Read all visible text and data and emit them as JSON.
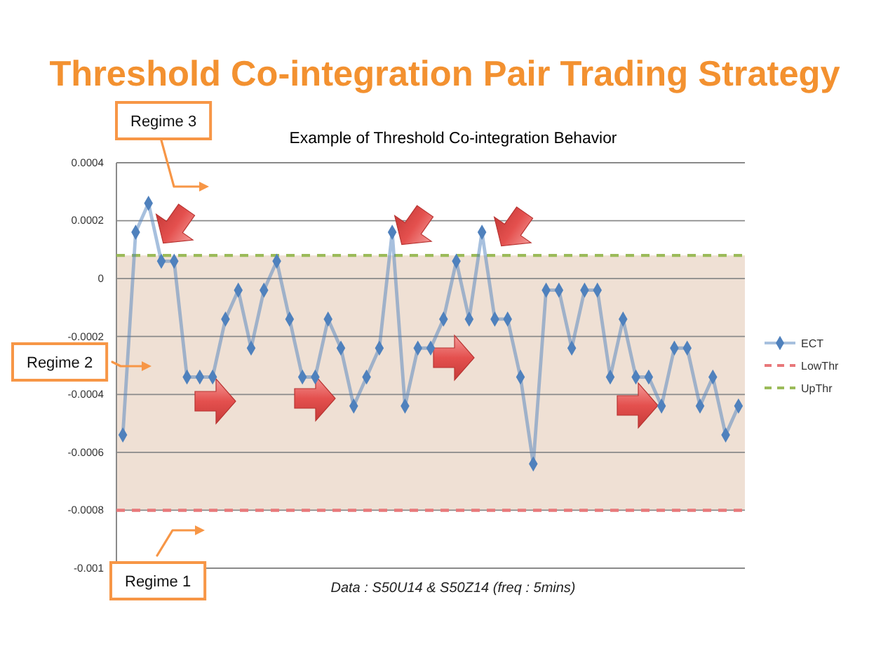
{
  "chart_data": {
    "type": "line",
    "title": "Threshold Co-integration Pair Trading Strategy",
    "subtitle": "Example of Threshold Co-integration Behavior",
    "xlabel": "Data : S50U14 & S50Z14 (freq : 5mins)",
    "categories": [
      null,
      null,
      null,
      null,
      null,
      null,
      null,
      null,
      null,
      null,
      null,
      null,
      null,
      null,
      null,
      null,
      null,
      null,
      null,
      null,
      null,
      null,
      null,
      null,
      null,
      null,
      null,
      null,
      null,
      null,
      null,
      null,
      null,
      null,
      null,
      null,
      null,
      null,
      null,
      null,
      null,
      null,
      null,
      null,
      null,
      null,
      null,
      null,
      null
    ],
    "series": [
      {
        "name": "ECT",
        "color": "#4f81bd",
        "values": [
          -0.00054,
          0.00016,
          0.00026,
          6e-05,
          6e-05,
          -0.00034,
          -0.00034,
          -0.00034,
          -0.00014,
          -4e-05,
          -0.00024,
          -4e-05,
          6e-05,
          -0.00014,
          -0.00034,
          -0.00034,
          -0.00014,
          -0.00024,
          -0.00044,
          -0.00034,
          -0.00024,
          0.00016,
          -0.00044,
          -0.00024,
          -0.00024,
          -0.00014,
          6e-05,
          -0.00014,
          0.00016,
          -0.00014,
          -0.00014,
          -0.00034,
          -0.00064,
          -4e-05,
          -4e-05,
          -0.00024,
          -4e-05,
          -4e-05,
          -0.00034,
          -0.00014,
          -0.00034,
          -0.00034,
          -0.00044,
          -0.00024,
          -0.00024,
          -0.00044,
          -0.00034,
          -0.00054,
          -0.00044
        ]
      }
    ],
    "ylim": [
      -0.001,
      0.0004
    ],
    "yticks": [
      -0.001,
      -0.0008,
      -0.0006,
      -0.0004,
      -0.0002,
      0,
      0.0002,
      0.0004
    ],
    "ref_lines": [
      {
        "axis": "y",
        "value": -0.0008,
        "label": "LowThr",
        "color": "#e8787a",
        "line_style": "dashed"
      },
      {
        "axis": "y",
        "value": 8e-05,
        "label": "UpThr",
        "color": "#9bbb59",
        "line_style": "dashed"
      }
    ],
    "bands": [
      {
        "axis": "y",
        "from": -0.0008,
        "to": 8e-05,
        "color": "#efe0d4"
      }
    ],
    "annotations": [
      "Regime 3",
      "Regime 2",
      "Regime 1"
    ],
    "grid": "y",
    "legend": "right",
    "marker": "diamond",
    "line_style": "solid",
    "tick_labels": "y"
  }
}
